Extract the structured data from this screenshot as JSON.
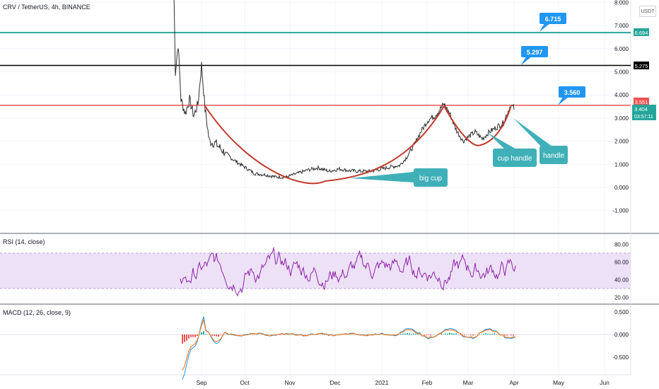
{
  "header": {
    "title": "CRV / TetherUS, 4h, BINANCE",
    "currency": "USDT"
  },
  "rsi_title": "RSI (14, close)",
  "macd_title": "MACD (12, 26, close, 9)",
  "price_axis": {
    "ticks": [
      "8.000",
      "7.000",
      "6.000",
      "5.000",
      "4.000",
      "3.000",
      "2.000",
      "1.000",
      "0.000",
      "-1.000"
    ],
    "values": [
      8,
      7,
      6,
      5,
      4,
      3,
      2,
      1,
      0,
      -1
    ]
  },
  "rsi_axis": {
    "ticks": [
      "80.00",
      "60.00",
      "40.00",
      "20.00"
    ],
    "values": [
      80,
      60,
      40,
      20
    ]
  },
  "macd_axis": {
    "ticks": [
      "0.500",
      "0.000",
      "-0.500"
    ],
    "values": [
      0.5,
      0,
      -0.5
    ]
  },
  "time_axis": {
    "labels": [
      "Sep",
      "Oct",
      "Nov",
      "Dec",
      "2021",
      "Feb",
      "Mar",
      "Apr",
      "May",
      "Jun"
    ]
  },
  "price_tags": [
    {
      "text": "6.694",
      "color": "#26a69a"
    },
    {
      "text": "5.275",
      "color": "#000000"
    },
    {
      "text": "3.551",
      "color": "#ef5350"
    },
    {
      "text": "3.404",
      "color": "#26a69a"
    },
    {
      "text": "03:57:11",
      "color": "#26a69a"
    }
  ],
  "callouts": [
    {
      "text": "6.715",
      "color": "#2196f3"
    },
    {
      "text": "5.297",
      "color": "#2196f3"
    },
    {
      "text": "3.560",
      "color": "#2196f3"
    }
  ],
  "notes": [
    {
      "text": "big cup",
      "color": "#3fb0b8"
    },
    {
      "text": "cup handle",
      "color": "#3fb0b8"
    },
    {
      "text": "handle",
      "color": "#3fb0b8"
    }
  ],
  "horizontal_lines": [
    {
      "price": 6.694,
      "color": "#26a69a"
    },
    {
      "price": 5.275,
      "color": "#000000"
    },
    {
      "price": 3.551,
      "color": "#ef5350"
    }
  ],
  "colors": {
    "price_line": "#2e2e2e",
    "cup": "#c0392b",
    "rsi": "#8e24aa",
    "rsi_band": "#e9d8f5",
    "macd": "#2196f3",
    "signal": "#ff6d00"
  }
}
